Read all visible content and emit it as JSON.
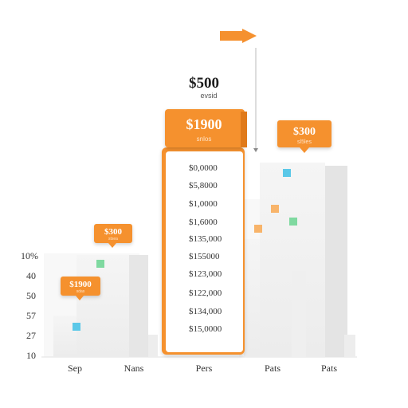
{
  "chart_data": {
    "type": "bar",
    "title": "",
    "xlabel": "",
    "ylabel": "",
    "y_ticks": [
      "10%",
      "40",
      "50",
      "57",
      "27",
      "10"
    ],
    "categories": [
      "Sep",
      "Nans",
      "Pers",
      "Pats",
      "Pats"
    ],
    "top_callout": {
      "amount": "$500",
      "sub": "evsid"
    },
    "callouts": [
      {
        "amount": "$1900",
        "sub": "snlos"
      },
      {
        "amount": "$300",
        "sub": "sl5les"
      },
      {
        "amount": "$300",
        "sub": "stsea"
      },
      {
        "amount": "$1900",
        "sub": "sdas"
      }
    ],
    "list_values": [
      "$0,0000",
      "$5,8000",
      "$1,0000",
      "$1,6000",
      "$135,000",
      "$155000",
      "$123,000",
      "$122,000",
      "$134,000",
      "$15,0000"
    ],
    "colors": {
      "accent": "#f5912f",
      "accent_dark": "#e87e1e",
      "bar_face": "#f2f2f2",
      "bar_side": "#e3e3e3",
      "marker_blue": "#5bc8e8",
      "marker_green": "#7fd9a0",
      "marker_orange": "#f8b46a"
    }
  }
}
